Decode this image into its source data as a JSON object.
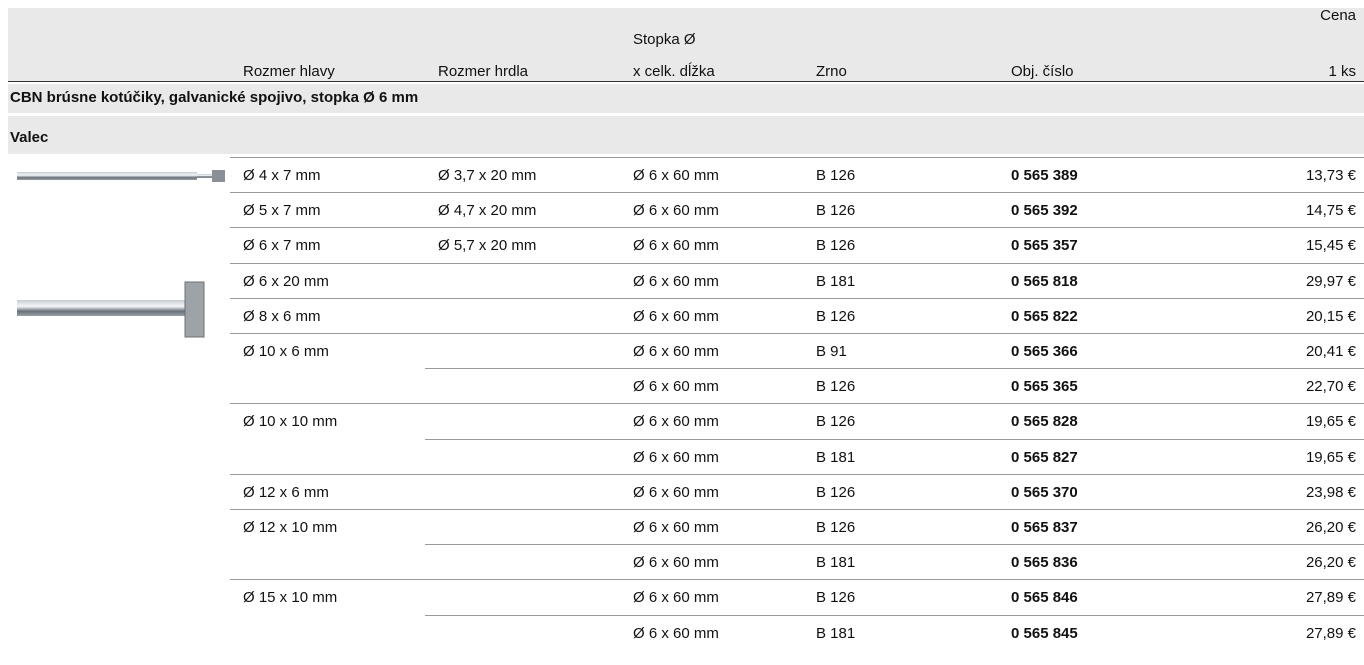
{
  "header": {
    "head_size": "Rozmer hlavy",
    "neck_size": "Rozmer hrdla",
    "shank_line1": "Stopka Ø",
    "shank_line2": "x celk. dĺžka",
    "grit": "Zrno",
    "order_no": "Obj. číslo",
    "price_line1": "Cena",
    "price_line2": "1 ks"
  },
  "section": "CBN brúsne kotúčiky, galvanické spojivo, stopka Ø 6 mm",
  "subsection": "Valec",
  "groups": [
    {
      "head": "Ø 4 x 7 mm",
      "rows": [
        {
          "neck": "Ø 3,7 x 20 mm",
          "shank": "Ø 6 x 60 mm",
          "grit": "B 126",
          "order_no": "0 565 389",
          "price": "13,73 €"
        }
      ]
    },
    {
      "head": "Ø 5 x 7 mm",
      "rows": [
        {
          "neck": "Ø 4,7 x 20 mm",
          "shank": "Ø 6 x 60 mm",
          "grit": "B 126",
          "order_no": "0 565 392",
          "price": "14,75 €"
        }
      ]
    },
    {
      "head": "Ø 6 x 7 mm",
      "rows": [
        {
          "neck": "Ø 5,7 x 20 mm",
          "shank": "Ø 6 x 60 mm",
          "grit": "B 126",
          "order_no": "0 565 357",
          "price": "15,45 €"
        }
      ]
    },
    {
      "head": "Ø 6 x 20 mm",
      "rows": [
        {
          "shank": "Ø 6 x 60 mm",
          "grit": "B 181",
          "order_no": "0 565 818",
          "price": "29,97 €"
        }
      ]
    },
    {
      "head": "Ø 8 x 6 mm",
      "rows": [
        {
          "shank": "Ø 6 x 60 mm",
          "grit": "B 126",
          "order_no": "0 565 822",
          "price": "20,15 €"
        }
      ]
    },
    {
      "head": "Ø 10 x 6 mm",
      "rows": [
        {
          "shank": "Ø 6 x 60 mm",
          "grit": "B 91",
          "order_no": "0 565 366",
          "price": "20,41 €"
        },
        {
          "shank": "Ø 6 x 60 mm",
          "grit": "B 126",
          "order_no": "0 565 365",
          "price": "22,70 €"
        }
      ]
    },
    {
      "head": "Ø 10 x 10 mm",
      "rows": [
        {
          "shank": "Ø 6 x 60 mm",
          "grit": "B 126",
          "order_no": "0 565 828",
          "price": "19,65 €"
        },
        {
          "shank": "Ø 6 x 60 mm",
          "grit": "B 181",
          "order_no": "0 565 827",
          "price": "19,65 €"
        }
      ]
    },
    {
      "head": "Ø 12 x 6 mm",
      "rows": [
        {
          "shank": "Ø 6 x 60 mm",
          "grit": "B 126",
          "order_no": "0 565 370",
          "price": "23,98 €"
        }
      ]
    },
    {
      "head": "Ø 12 x 10 mm",
      "rows": [
        {
          "shank": "Ø 6 x 60 mm",
          "grit": "B 126",
          "order_no": "0 565 837",
          "price": "26,20 €"
        },
        {
          "shank": "Ø 6 x 60 mm",
          "grit": "B 181",
          "order_no": "0 565 836",
          "price": "26,20 €"
        }
      ]
    },
    {
      "head": "Ø 15 x 10 mm",
      "rows": [
        {
          "shank": "Ø 6 x 60 mm",
          "grit": "B 126",
          "order_no": "0 565 846",
          "price": "27,89 €"
        },
        {
          "shank": "Ø 6 x 60 mm",
          "grit": "B 181",
          "order_no": "0 565 845",
          "price": "27,89 €"
        }
      ]
    }
  ]
}
